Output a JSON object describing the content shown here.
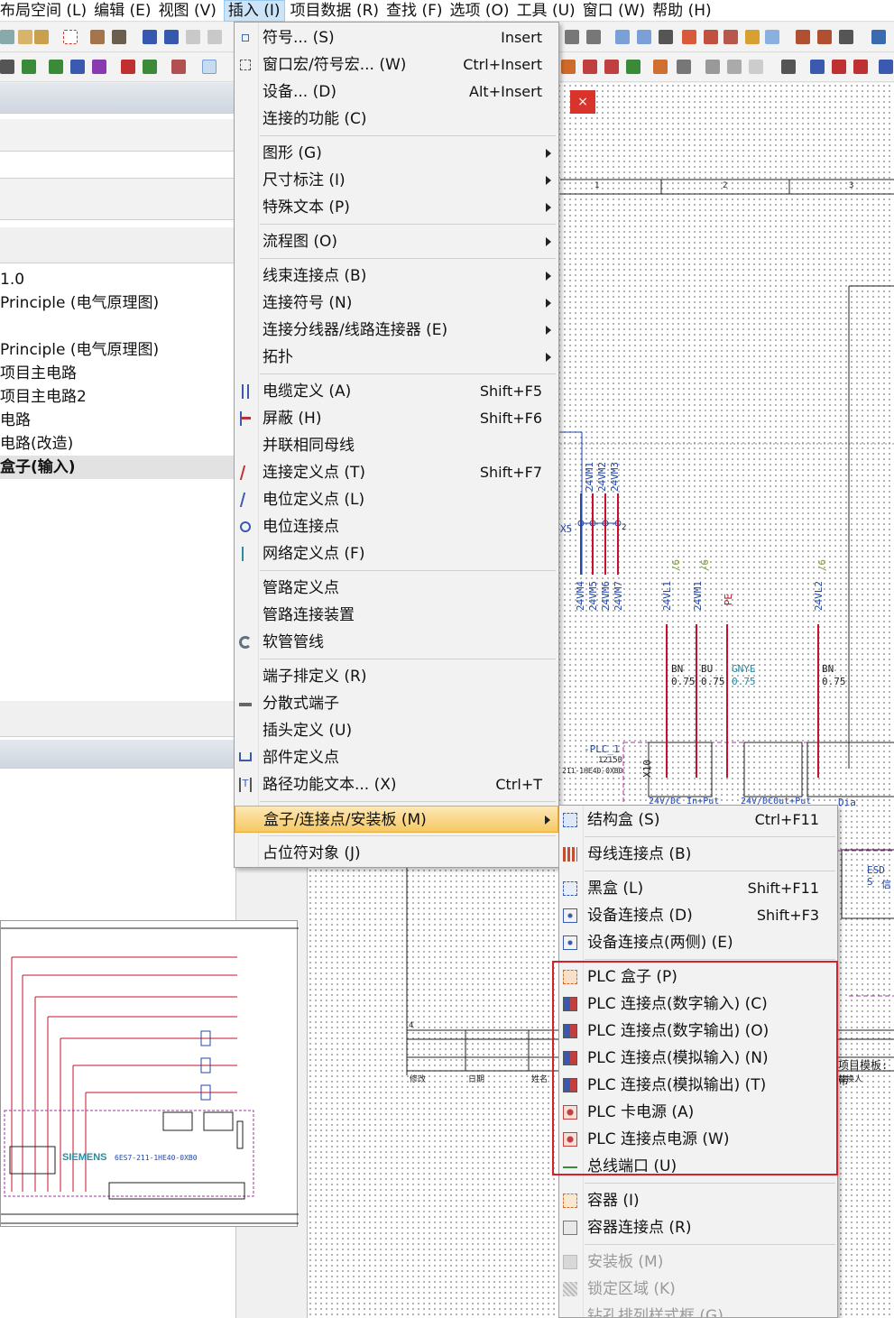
{
  "menubar": {
    "items": [
      "布局空间 (L)",
      "编辑 (E)",
      "视图 (V)",
      "插入 (I)",
      "项目数据 (R)",
      "查找 (F)",
      "选项 (O)",
      "工具 (U)",
      "窗口 (W)",
      "帮助 (H)"
    ],
    "active": "插入 (I)"
  },
  "left_panel": {
    "tree": [
      "1.0",
      "Principle (电气原理图)",
      "",
      "Principle (电气原理图)",
      "项目主电路",
      "项目主电路2",
      "电路",
      "电路(改造)",
      "盒子(输入)"
    ],
    "selected": "盒子(输入)"
  },
  "insert_menu": {
    "items": [
      {
        "label": "符号... (S)",
        "shortcut": "Insert",
        "icon": "symbol-icon"
      },
      {
        "label": "窗口宏/符号宏... (W)",
        "shortcut": "Ctrl+Insert",
        "icon": "macro-icon"
      },
      {
        "label": "设备... (D)",
        "shortcut": "Alt+Insert"
      },
      {
        "label": "连接的功能 (C)",
        "shortcut": ""
      },
      {
        "label": "图形 (G)",
        "submenu": true
      },
      {
        "label": "尺寸标注 (I)",
        "submenu": true
      },
      {
        "label": "特殊文本 (P)",
        "submenu": true
      },
      {
        "label": "流程图 (O)",
        "submenu": true
      },
      {
        "label": "线束连接点 (B)",
        "submenu": true
      },
      {
        "label": "连接符号 (N)",
        "submenu": true
      },
      {
        "label": "连接分线器/线路连接器 (E)",
        "submenu": true
      },
      {
        "label": "拓扑",
        "submenu": true
      },
      {
        "label": "电缆定义 (A)",
        "shortcut": "Shift+F5",
        "icon": "cable-icon"
      },
      {
        "label": "屏蔽 (H)",
        "shortcut": "Shift+F6",
        "icon": "shield-icon"
      },
      {
        "label": "并联相同母线",
        "shortcut": ""
      },
      {
        "label": "连接定义点 (T)",
        "shortcut": "Shift+F7",
        "icon": "connection-def-icon"
      },
      {
        "label": "电位定义点 (L)",
        "shortcut": "",
        "icon": "potential-def-icon"
      },
      {
        "label": "电位连接点",
        "shortcut": "",
        "icon": "potential-conn-icon"
      },
      {
        "label": "网络定义点 (F)",
        "shortcut": "",
        "icon": "network-def-icon"
      },
      {
        "label": "管路定义点",
        "shortcut": ""
      },
      {
        "label": "管路连接装置",
        "shortcut": ""
      },
      {
        "label": "软管管线",
        "shortcut": "",
        "icon": "hose-icon"
      },
      {
        "label": "端子排定义 (R)",
        "shortcut": ""
      },
      {
        "label": "分散式端子",
        "shortcut": "",
        "icon": "distributed-terminal-icon"
      },
      {
        "label": "插头定义 (U)",
        "shortcut": ""
      },
      {
        "label": "部件定义点",
        "shortcut": "",
        "icon": "cart-icon"
      },
      {
        "label": "路径功能文本... (X)",
        "shortcut": "Ctrl+T",
        "icon": "path-text-icon"
      },
      {
        "label": "盒子/连接点/安装板 (M)",
        "submenu": true,
        "highlighted": true
      },
      {
        "label": "占位符对象 (J)",
        "shortcut": ""
      }
    ]
  },
  "box_submenu": {
    "items": [
      {
        "label": "结构盒 (S)",
        "shortcut": "Ctrl+F11",
        "icon": "structure-box-icon"
      },
      {
        "label": "母线连接点 (B)",
        "shortcut": "",
        "icon": "busbar-icon"
      },
      {
        "label": "黑盒 (L)",
        "shortcut": "Shift+F11",
        "icon": "black-box-icon"
      },
      {
        "label": "设备连接点 (D)",
        "shortcut": "Shift+F3",
        "icon": "device-conn-icon"
      },
      {
        "label": "设备连接点(两侧) (E)",
        "shortcut": "",
        "icon": "device-conn-both-icon"
      },
      {
        "label": "PLC 盒子 (P)",
        "shortcut": "",
        "icon": "plc-box-icon"
      },
      {
        "label": "PLC 连接点(数字输入) (C)",
        "shortcut": "",
        "icon": "plc-di-icon"
      },
      {
        "label": "PLC 连接点(数字输出) (O)",
        "shortcut": "",
        "icon": "plc-do-icon"
      },
      {
        "label": "PLC 连接点(模拟输入) (N)",
        "shortcut": "",
        "icon": "plc-ai-icon"
      },
      {
        "label": "PLC 连接点(模拟输出) (T)",
        "shortcut": "",
        "icon": "plc-ao-icon"
      },
      {
        "label": "PLC 卡电源 (A)",
        "shortcut": "",
        "icon": "plc-card-power-icon"
      },
      {
        "label": "PLC 连接点电源 (W)",
        "shortcut": "",
        "icon": "plc-conn-power-icon"
      },
      {
        "label": "总线端口 (U)",
        "shortcut": "",
        "icon": "bus-port-icon"
      },
      {
        "label": "容器 (I)",
        "shortcut": "",
        "icon": "container-icon"
      },
      {
        "label": "容器连接点 (R)",
        "shortcut": "",
        "icon": "container-conn-icon"
      },
      {
        "label": "安装板 (M)",
        "shortcut": "",
        "disabled": true,
        "icon": "mounting-plate-icon"
      },
      {
        "label": "锁定区域 (K)",
        "shortcut": "",
        "disabled": true,
        "icon": "locked-area-icon"
      },
      {
        "label": "钻孔排列样式框 (G)",
        "shortcut": "",
        "disabled": true
      }
    ]
  },
  "canvas": {
    "column_numbers": [
      "1",
      "2",
      "3"
    ],
    "wire_labels_top": [
      "24VM1",
      "24VM2",
      "24VM3"
    ],
    "wire_labels_bottom": [
      "24VM4",
      "24VM5",
      "24VM6",
      "24VM7"
    ],
    "wire_labels_mid": [
      "24VL1",
      "24VM1",
      "PE",
      "24VL2"
    ],
    "cross_refs": [
      "/6",
      "/6",
      "/6"
    ],
    "cores": [
      {
        "color": "BN",
        "size": "0.75"
      },
      {
        "color": "BU",
        "size": "0.75"
      },
      {
        "color": "GNYE",
        "size": "0.75"
      },
      {
        "color": "BN",
        "size": "0.75"
      }
    ],
    "plc_label": "-PLC_1",
    "plc_sub": "12150",
    "plc_part": "211-1HE40-0XB0",
    "terminal_label": "X10",
    "power_label": "24V/DC_In+Put",
    "power_label2": "24V/DCOut+Put",
    "dia_label": "Dia",
    "x5_label": "X5",
    "num_label": "2",
    "esd_label": "ESD S",
    "esd_sub": "信",
    "title_row": "4",
    "title_cells": [
      "修改",
      "日期",
      "姓名"
    ],
    "template_label": "项目模板:带",
    "template_sub": "替换人"
  },
  "preview": {
    "brand": "SIEMENS",
    "part": "6ES7-211-1HE40-0XB0"
  }
}
